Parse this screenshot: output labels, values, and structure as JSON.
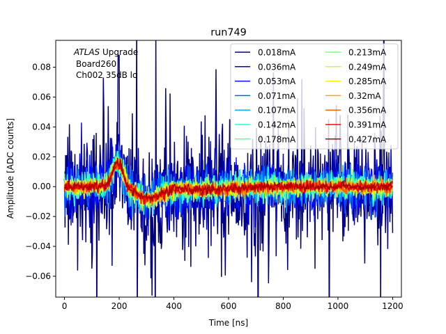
{
  "chart_data": {
    "type": "line",
    "title": "run749",
    "xlabel": "Time [ns]",
    "ylabel": "Amplitude [ADC counts]",
    "xlim": [
      -32,
      1232
    ],
    "ylim": [
      -0.074,
      0.098
    ],
    "xticks": [
      0,
      200,
      400,
      600,
      800,
      1000,
      1200
    ],
    "yticks": [
      -0.06,
      -0.04,
      -0.02,
      0.0,
      0.02,
      0.04,
      0.06,
      0.08
    ],
    "xtick_labels": [
      "0",
      "200",
      "400",
      "600",
      "800",
      "1000",
      "1200"
    ],
    "ytick_labels": [
      "−0.06",
      "−0.04",
      "−0.02",
      "0.00",
      "0.02",
      "0.04",
      "0.06",
      "0.08"
    ],
    "annotation": {
      "italic": "ATLAS",
      "rest": " Upgrade",
      "line2": "Board260",
      "line3": "Ch002 35dB lo"
    },
    "legend_position": "top-right",
    "legend_columns": 2,
    "series": [
      {
        "name": "0.018mA",
        "color": "#00007f",
        "noise": 0.022
      },
      {
        "name": "0.036mA",
        "color": "#0000c8",
        "noise": 0.012
      },
      {
        "name": "0.053mA",
        "color": "#0010ff",
        "noise": 0.009
      },
      {
        "name": "0.071mA",
        "color": "#0060ff",
        "noise": 0.007
      },
      {
        "name": "0.107mA",
        "color": "#00b0ff",
        "noise": 0.0055
      },
      {
        "name": "0.142mA",
        "color": "#1cffdb",
        "noise": 0.0045
      },
      {
        "name": "0.178mA",
        "color": "#5affa0",
        "noise": 0.004
      },
      {
        "name": "0.213mA",
        "color": "#7dff7a",
        "noise": 0.0035
      },
      {
        "name": "0.249mA",
        "color": "#c1ff36",
        "noise": 0.003
      },
      {
        "name": "0.285mA",
        "color": "#fff000",
        "noise": 0.0028
      },
      {
        "name": "0.32mA",
        "color": "#ffa900",
        "noise": 0.0025
      },
      {
        "name": "0.356mA",
        "color": "#ff6300",
        "noise": 0.0022
      },
      {
        "name": "0.391mA",
        "color": "#f10800",
        "noise": 0.002
      },
      {
        "name": "0.427mA",
        "color": "#b20000",
        "noise": 0.0018
      }
    ]
  }
}
